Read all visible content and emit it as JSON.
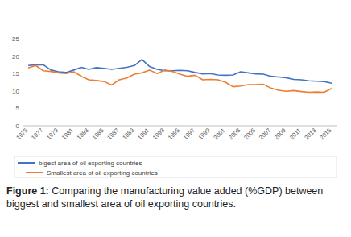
{
  "chart_data": {
    "type": "line",
    "categories": [
      1975,
      null,
      1977,
      null,
      1979,
      null,
      1981,
      null,
      1983,
      null,
      1985,
      null,
      1987,
      null,
      1989,
      null,
      1991,
      null,
      1993,
      null,
      1995,
      null,
      1997,
      null,
      1999,
      null,
      2001,
      null,
      2003,
      null,
      2005,
      null,
      2007,
      null,
      2009,
      null,
      2011,
      null,
      2013,
      null,
      2015
    ],
    "series": [
      {
        "name": "bigest area of oil exporting countries",
        "color": "#4472c4",
        "values": [
          17.3,
          17.5,
          17.5,
          16,
          15.5,
          15.3,
          16,
          16.8,
          16.2,
          16.7,
          16.5,
          16.2,
          16.5,
          16.8,
          17.3,
          19,
          17,
          16.2,
          15.8,
          15.8,
          15.9,
          15.8,
          15.3,
          14.9,
          15,
          14.6,
          14.5,
          14.6,
          15.5,
          15.2,
          14.9,
          14.8,
          14.2,
          14,
          13.8,
          13.3,
          13.2,
          12.9,
          12.8,
          12.7,
          12.2
        ]
      },
      {
        "name": "Smallest area of oil exporting countries",
        "color": "#ed7d31",
        "values": [
          16.6,
          17.3,
          15.8,
          15.6,
          15.2,
          15,
          15.5,
          14.2,
          13.2,
          13,
          12.7,
          11.7,
          13.2,
          13.7,
          14.8,
          15.2,
          16,
          15,
          16,
          15.6,
          14.8,
          14.2,
          14.5,
          13.2,
          13.3,
          13.2,
          12.5,
          11.2,
          11.4,
          11.8,
          11.8,
          11.9,
          10.8,
          10.2,
          9.9,
          10.1,
          9.8,
          9.6,
          9.7,
          9.6,
          10.7
        ]
      }
    ],
    "ylim": [
      0,
      25
    ],
    "yticks": [
      0,
      5,
      10,
      15,
      20,
      25
    ],
    "grid": false,
    "legend": "bottom"
  },
  "caption": {
    "label": "Figure 1:",
    "text": "Comparing the manufacturing value added (%GDP) between biggest and smallest area of oil exporting countries."
  }
}
